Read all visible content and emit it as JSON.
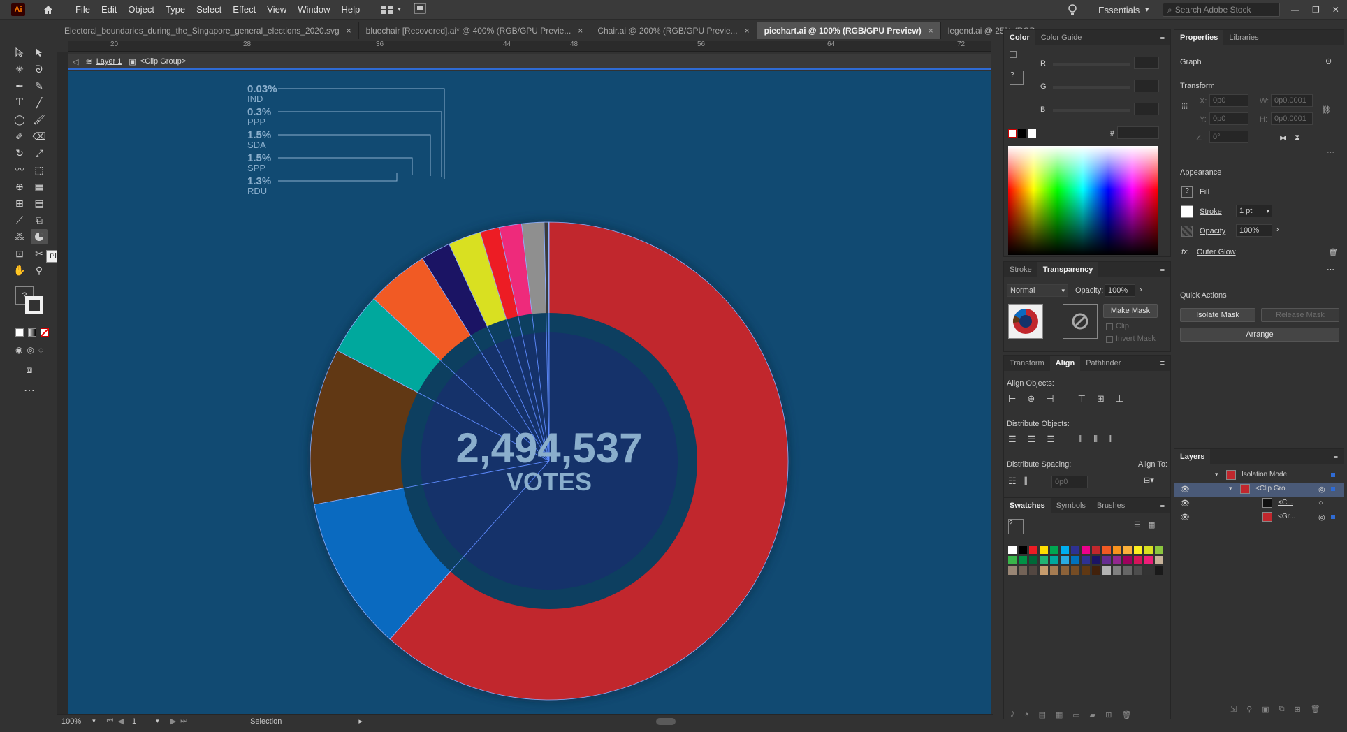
{
  "app": {
    "logo": "Ai",
    "menu": [
      "File",
      "Edit",
      "Object",
      "Type",
      "Select",
      "Effect",
      "View",
      "Window",
      "Help"
    ],
    "workspace": "Essentials",
    "search_placeholder": "Search Adobe Stock"
  },
  "tabs": [
    {
      "label": "Electoral_boundaries_during_the_Singapore_general_elections_2020.svg",
      "active": false
    },
    {
      "label": "bluechair [Recovered].ai* @ 400% (RGB/GPU Previe...",
      "active": false
    },
    {
      "label": "Chair.ai @ 200% (RGB/GPU Previe...",
      "active": false
    },
    {
      "label": "piechart.ai @ 100% (RGB/GPU Preview)",
      "active": true
    },
    {
      "label": "legend.ai @ 25% (RGB",
      "active": false
    }
  ],
  "tab_close": "×",
  "breadcrumb": {
    "layer": "Layer 1",
    "group": "<Clip Group>"
  },
  "hruler_ticks": [
    "20",
    "28",
    "36",
    "44",
    "48",
    "56",
    "64",
    "72"
  ],
  "tooltip": "Pie Graph Tool",
  "donut": {
    "total": "2,494,537",
    "unit": "VOTES",
    "slices": [
      {
        "value": 61.2,
        "color": "#c1272d"
      },
      {
        "value": 10.4,
        "color": "#0a6ac0"
      },
      {
        "value": 10.5,
        "color": "#613814"
      },
      {
        "value": 4.2,
        "color": "#00a89d"
      },
      {
        "value": 4.2,
        "color": "#f15a24"
      },
      {
        "value": 2.0,
        "color": "#1b1464"
      },
      {
        "value": 2.2,
        "color": "#d9e021"
      },
      {
        "value": 1.3,
        "color": "#ed1c24"
      },
      {
        "value": 1.5,
        "color": "#ee2a7b"
      },
      {
        "value": 1.5,
        "color": "#8f8f8f"
      },
      {
        "value": 0.3,
        "color": "#3a3a3a"
      },
      {
        "value": 0.03,
        "color": "#c0c0c0"
      }
    ],
    "labels": [
      {
        "pct": "0.03%",
        "party": "IND"
      },
      {
        "pct": "0.3%",
        "party": "PPP"
      },
      {
        "pct": "1.5%",
        "party": "SDA"
      },
      {
        "pct": "1.5%",
        "party": "SPP"
      },
      {
        "pct": "1.3%",
        "party": "RDU"
      }
    ]
  },
  "status": {
    "zoom": "100%",
    "artboard": "1",
    "mode": "Selection"
  },
  "color_panel": {
    "tabs": [
      "Color",
      "Color Guide"
    ],
    "channels": [
      "R",
      "G",
      "B"
    ],
    "hex_label": "#"
  },
  "transparency_panel": {
    "tabs": [
      "Stroke",
      "Transparency"
    ],
    "blend": "Normal",
    "opacity_label": "Opacity:",
    "opacity": "100%",
    "make_mask": "Make Mask",
    "clip": "Clip",
    "invert": "Invert Mask"
  },
  "align_panel": {
    "tabs": [
      "Transform",
      "Align",
      "Pathfinder"
    ],
    "align_objects": "Align Objects:",
    "distribute_objects": "Distribute Objects:",
    "distribute_spacing": "Distribute Spacing:",
    "align_to": "Align To:",
    "spacing_value": "0p0"
  },
  "swatches_panel": {
    "tabs": [
      "Swatches",
      "Symbols",
      "Brushes"
    ]
  },
  "properties": {
    "tabs": [
      "Properties",
      "Libraries"
    ],
    "type": "Graph",
    "transform": "Transform",
    "x_label": "X:",
    "x_val": "0p0",
    "y_label": "Y:",
    "y_val": "0p0",
    "w_label": "W:",
    "w_val": "0p0.0001",
    "h_label": "H:",
    "h_val": "0p0.0001",
    "angle_val": "0°",
    "appearance": "Appearance",
    "fill": "Fill",
    "stroke": "Stroke",
    "stroke_val": "1 pt",
    "opacity": "Opacity",
    "opacity_val": "100%",
    "effect": "Outer Glow",
    "quick_actions": "Quick Actions",
    "isolate_mask": "Isolate Mask",
    "release_mask": "Release Mask",
    "arrange": "Arrange"
  },
  "layers": {
    "title": "Layers",
    "rows": [
      "Isolation Mode",
      "<Clip Gro...",
      "<C...",
      "<Gr..."
    ]
  },
  "swatch_colors": [
    "#ffffff",
    "#000000",
    "#ed1c24",
    "#ffde00",
    "#00a651",
    "#00aeef",
    "#2e3192",
    "#ec008c",
    "#c1272d",
    "#f15a24",
    "#f7931e",
    "#fbb03b",
    "#fcee21",
    "#d9e021",
    "#8cc63f",
    "#39b54a",
    "#009245",
    "#006837",
    "#22b573",
    "#00a99d",
    "#29abe2",
    "#0071bc",
    "#2e3192",
    "#1b1464",
    "#662d91",
    "#93278f",
    "#9e005d",
    "#d4145a",
    "#ed1e79",
    "#c7b299",
    "#998675",
    "#736357",
    "#534741",
    "#c69c6d",
    "#a67c52",
    "#8c6239",
    "#754c24",
    "#603813",
    "#42210b",
    "#b3b3b3",
    "#808080",
    "#666666",
    "#4d4d4d",
    "#333333",
    "#1a1a1a"
  ]
}
